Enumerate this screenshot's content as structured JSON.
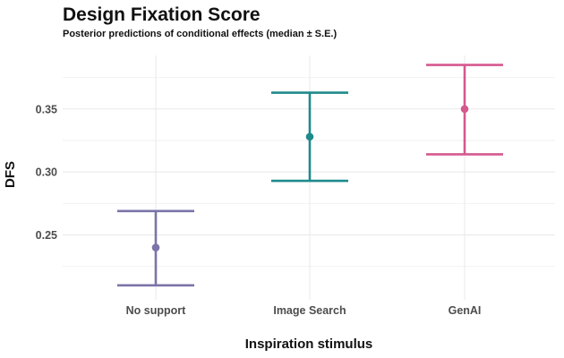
{
  "chart_data": {
    "type": "errorbar",
    "title": "Design Fixation Score",
    "subtitle": "Posterior predictions of conditional effects (median ± S.E.)",
    "xlabel": "Inspiration stimulus",
    "ylabel": "DFS",
    "categories": [
      "No support",
      "Image Search",
      "GenAI"
    ],
    "median": [
      0.24,
      0.328,
      0.35
    ],
    "lower": [
      0.21,
      0.293,
      0.314
    ],
    "upper": [
      0.269,
      0.363,
      0.385
    ],
    "colors": [
      "#7b74a8",
      "#1f8a8c",
      "#d5598f"
    ],
    "ylim": [
      0.1985,
      0.3925
    ],
    "yticks": [
      0.25,
      0.3,
      0.35
    ],
    "ytick_labels": [
      "0.25",
      "0.30",
      "0.35"
    ],
    "grid": true,
    "legend": "none"
  }
}
